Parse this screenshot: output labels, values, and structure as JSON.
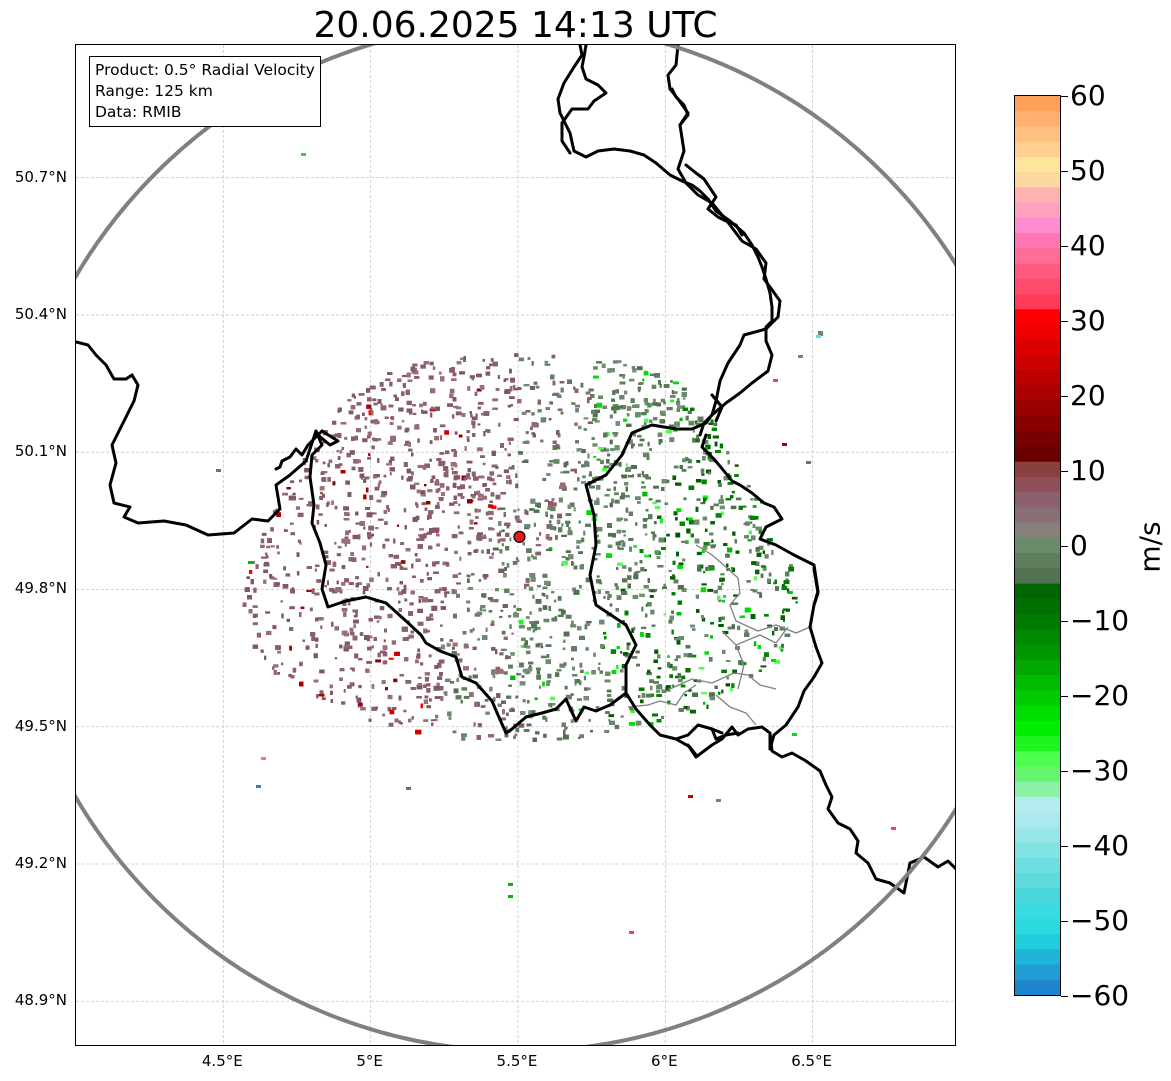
{
  "title": "20.06.2025 14:13 UTC",
  "info_box": {
    "product": "Product: 0.5° Radial Velocity",
    "range": "Range: 125 km",
    "data": "Data: RMIB"
  },
  "map": {
    "lat_range": [
      48.8,
      50.99
    ],
    "lon_range": [
      4.0,
      6.99
    ],
    "lat_ticks": [
      "50.7°N",
      "50.4°N",
      "50.1°N",
      "49.8°N",
      "49.5°N",
      "49.2°N",
      "48.9°N"
    ],
    "lat_tick_values": [
      50.7,
      50.4,
      50.1,
      49.8,
      49.5,
      49.2,
      48.9
    ],
    "lon_ticks": [
      "4.5°E",
      "5°E",
      "5.5°E",
      "6°E",
      "6.5°E"
    ],
    "lon_tick_values": [
      4.5,
      5.0,
      5.5,
      6.0,
      6.5
    ],
    "radar_site": {
      "lon": 5.505,
      "lat": 49.915
    },
    "range_ring_km": 125,
    "gridlines": true,
    "colors": {
      "border": "#000000",
      "admin_border": "#808080",
      "range_ring": "#808080",
      "radar_marker": "#e41a1c"
    }
  },
  "colorbar": {
    "unit": "m/s",
    "min": -60,
    "max": 60,
    "ticks": [
      "60",
      "50",
      "40",
      "30",
      "20",
      "10",
      "0",
      "−10",
      "−20",
      "−30",
      "−40",
      "−50",
      "−60"
    ],
    "tick_values": [
      60,
      50,
      40,
      30,
      20,
      10,
      0,
      -10,
      -20,
      -30,
      -40,
      -50,
      -60
    ],
    "colors_top_to_bottom": [
      "#ffa05a",
      "#ffb06e",
      "#ffc080",
      "#ffd090",
      "#ffe49c",
      "#fdd8a0",
      "#ffb2b0",
      "#ffa0c0",
      "#ff8cd0",
      "#ff78b4",
      "#ff6c98",
      "#ff5a80",
      "#ff4c6c",
      "#ff3c58",
      "#ff0000",
      "#ee0000",
      "#dd0000",
      "#cc0000",
      "#bb0000",
      "#aa0000",
      "#990000",
      "#880000",
      "#770000",
      "#6a0000",
      "#8b4040",
      "#8e5058",
      "#8c6070",
      "#8a7076",
      "#88807a",
      "#6a8c6a",
      "#5e7e5e",
      "#527252",
      "#006600",
      "#007000",
      "#007a00",
      "#008800",
      "#009600",
      "#00a800",
      "#00bb00",
      "#00cc00",
      "#00dd00",
      "#00ee00",
      "#1ef51e",
      "#4cff4c",
      "#66f56e",
      "#8cf2a8",
      "#b4ecf0",
      "#aaeaee",
      "#98e6e8",
      "#82e2e4",
      "#6edee0",
      "#5cdadc",
      "#48d8dc",
      "#38dce0",
      "#2adade",
      "#22ccdc",
      "#20b4d8",
      "#209ed4",
      "#1e86cc"
    ]
  }
}
